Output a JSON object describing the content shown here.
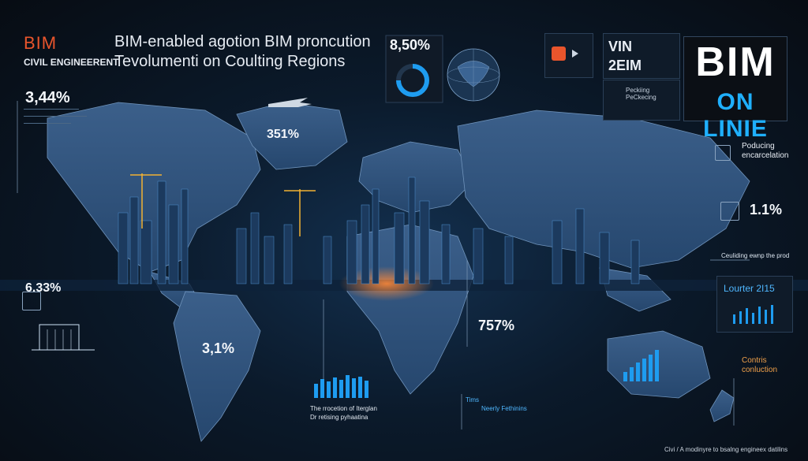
{
  "header": {
    "bim": "BIM",
    "civil": "CIVIL ENGINEERENT",
    "line1": "BIM-enabled agotion BIM proncution",
    "line2": "Tevolumenti on Coulting Regions"
  },
  "stats": {
    "left_top": "3,44%",
    "greenland": "351%",
    "donut": "8,50%",
    "east": "1.1%",
    "left_mid": "6.33%",
    "south_america": "3,1%",
    "africa_east": "757%",
    "colors": {
      "accent": "#1e9cf0",
      "orange": "#e9552c",
      "bg": "#0a1018"
    }
  },
  "panels": {
    "vin_title": "VIN",
    "vin_sub": "2EIM",
    "pecking_title": "Peckiing",
    "pecking_sub": "PeCkecing",
    "bim_big_1": "BIM",
    "bim_big_2": "ON LINIE",
    "producing_1": "Poducing",
    "producing_2": "encarcelation",
    "building_line": "Ceuliding ewnp the prod",
    "lourter": "Lourter 2I15",
    "contris_1": "Contris",
    "contris_2": "conluction",
    "bottom_caption_1": "The rrocetion of Iterglan",
    "bottom_caption_2": "Dr retising pyhaatina",
    "times_label": "Tims",
    "times_row1": "Neerly Fethinins",
    "footer": "Civi / A modinyre to bsalng engineex datilins"
  },
  "icons": [
    "crane-icon",
    "airplane-icon",
    "building-icon",
    "chart-icon",
    "globe-icon",
    "gear-icon",
    "phone-icon"
  ]
}
